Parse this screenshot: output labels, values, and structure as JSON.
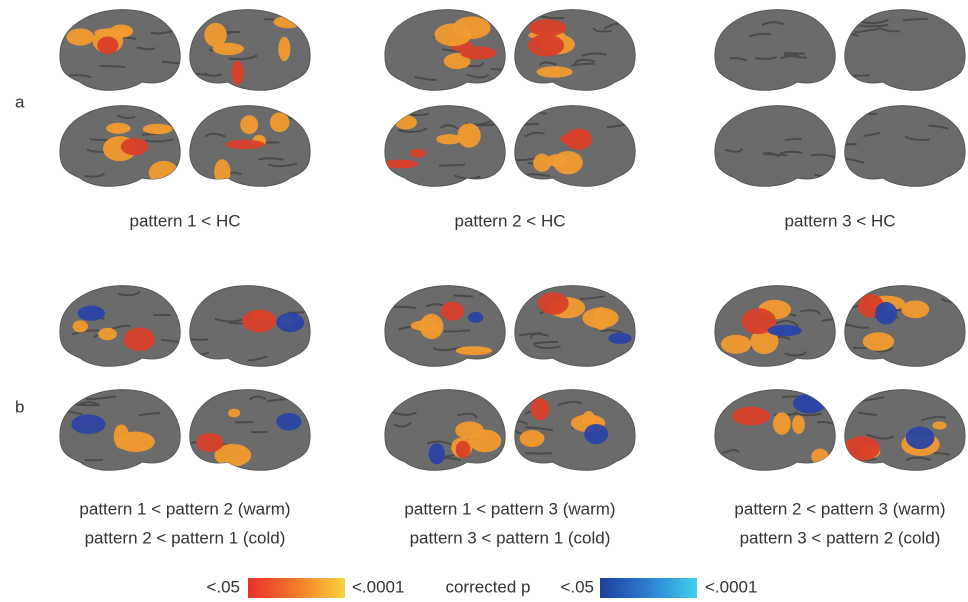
{
  "panels": [
    {
      "label": "a",
      "groups": [
        {
          "caption": [
            "pattern 1 < HC"
          ]
        },
        {
          "caption": [
            "pattern 2 < HC"
          ]
        },
        {
          "caption": [
            "pattern 3 < HC"
          ]
        }
      ]
    },
    {
      "label": "b",
      "groups": [
        {
          "caption": [
            "pattern 1 < pattern 2 (warm)",
            "pattern 2 < pattern 1 (cold)"
          ]
        },
        {
          "caption": [
            "pattern 1 < pattern 3 (warm)",
            "pattern 3 < pattern 1 (cold)"
          ]
        },
        {
          "caption": [
            "pattern 2 < pattern 3 (warm)",
            "pattern 3 < pattern 2 (cold)"
          ]
        }
      ]
    }
  ],
  "legend": {
    "warm_min": "<.05",
    "warm_max": "<.0001",
    "title": "corrected p",
    "cold_min": "<.05",
    "cold_max": "<.0001"
  }
}
